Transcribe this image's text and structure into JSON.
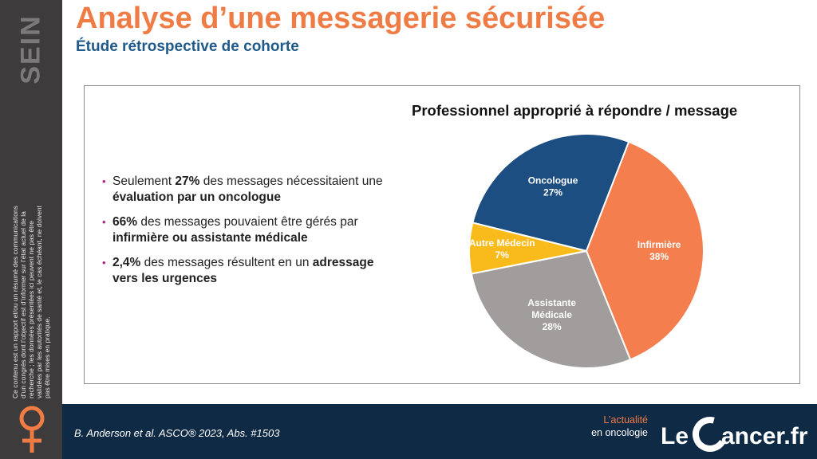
{
  "title": "Analyse d’une messagerie sécurisée",
  "subtitle": "Étude rétrospective de cohorte",
  "sidebar": {
    "category": "SEIN",
    "disclaimer": "Ce contenu est un rapport et/ou un résumé des communications d’un congrès dont l’objectif est d’informer sur l’état actuel de la recherche ; les données présentées ici peuvent ne pas être validées par les autorités de santé et, le cas échéant, ne doivent pas être mises en pratique."
  },
  "bullets": [
    {
      "pre": "Seulement ",
      "bold": "27%",
      "mid": " des messages nécessitaient une ",
      "bold2": "évaluation par un oncologue",
      "post": ""
    },
    {
      "pre": "",
      "bold": "66%",
      "mid": " des messages pouvaient être gérés par ",
      "bold2": "infirmière ou assistante médicale",
      "post": ""
    },
    {
      "pre": "",
      "bold": "2,4%",
      "mid": " des messages résultent en un ",
      "bold2": "adressage vers les urgences",
      "post": ""
    }
  ],
  "chart_data": {
    "type": "pie",
    "title": "Professionnel approprié à répondre / message",
    "slices": [
      {
        "label": "Oncologue",
        "value": 27,
        "value_label": "27%",
        "color": "#1d4e82"
      },
      {
        "label": "Infirmière",
        "value": 38,
        "value_label": "38%",
        "color": "#f47e4e"
      },
      {
        "label": "Assistante Médicale",
        "label_lines": [
          "Assistante",
          "Médicale"
        ],
        "value": 28,
        "value_label": "28%",
        "color": "#a19d9d"
      },
      {
        "label": "Autre Médecin",
        "value": 7,
        "value_label": "7%",
        "color": "#f9ba1c"
      }
    ]
  },
  "footer": {
    "reference": "B. Anderson et al. ASCO® 2023, Abs. #1503",
    "tagline_1": "L’actualité",
    "tagline_2": "en oncologie",
    "logo_text": "Le Cancer.fr"
  },
  "colors": {
    "accent": "#f07c45",
    "navy": "#0f2a44",
    "subtitle": "#1f5a8a",
    "sidebar": "#3d3b3b"
  }
}
